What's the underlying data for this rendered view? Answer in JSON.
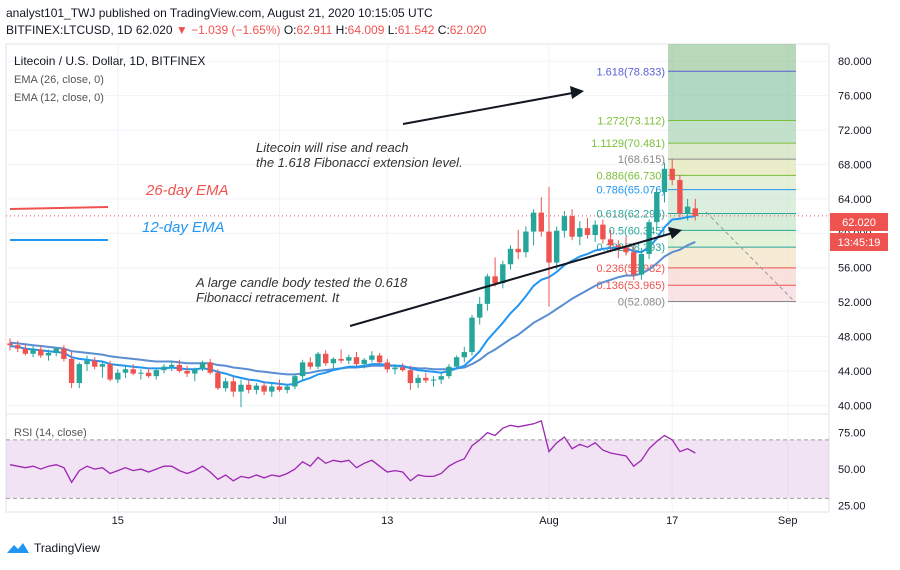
{
  "header": {
    "line1": "analyst101_TWJ published on TradingView.com, August 21, 2020 10:15:05 UTC",
    "symbol": "BITFINEX:LTCUSD, 1D",
    "last": "62.020",
    "change": "−1.039 (−1.65%)",
    "o_label": "O:",
    "o": "62.911",
    "h_label": "H:",
    "h": "64.009",
    "l_label": "L:",
    "l": "61.542",
    "c_label": "C:",
    "c": "62.020"
  },
  "legend": {
    "title": "Litecoin / U.S. Dollar, 1D, BITFINEX",
    "ema26": "EMA (26, close, 0)",
    "ema12": "EMA (12, close, 0)"
  },
  "annotations": {
    "ema26": "26-day EMA",
    "ema12": "12-day EMA",
    "note1_line1": "Litecoin will rise and reach",
    "note1_line2": "the 1.618 Fibonacci extension level.",
    "note2_line1": "A large candle body tested the 0.618",
    "note2_line2": "Fibonacci retracement. It"
  },
  "price_tag": {
    "value": "62.020",
    "countdown": "13:45:19"
  },
  "rsi_label": "RSI (14, close)",
  "footer": {
    "brand": "TradingView"
  },
  "colors": {
    "up": "#26a69a",
    "down": "#ef5350",
    "ema": "#2196f3",
    "rsi": "#9c27b0",
    "rsi_band": "#e1bee7"
  },
  "chart_data": {
    "type": "candlestick",
    "symbol": "LTCUSD",
    "timeframe": "1D",
    "price_ticks": [
      "80.000",
      "76.000",
      "72.000",
      "68.000",
      "64.000",
      "60.000",
      "56.000",
      "52.000",
      "48.000",
      "44.000",
      "40.000"
    ],
    "price_tick_values": [
      80,
      76,
      72,
      68,
      64,
      60,
      56,
      52,
      48,
      44,
      40
    ],
    "price_range": [
      39.0,
      82.0
    ],
    "date_ticks": [
      "15",
      "Jul",
      "13",
      "Aug",
      "17",
      "Sep"
    ],
    "date_tick_index": [
      14,
      35,
      49,
      70,
      86,
      101
    ],
    "rsi_ticks": [
      "75.00",
      "50.00",
      "25.00"
    ],
    "rsi_tick_values": [
      75,
      50,
      25
    ],
    "rsi_range": [
      22,
      85
    ],
    "rsi_band": [
      30,
      70
    ],
    "candles": [
      [
        47.2,
        47.8,
        46.4,
        47.0
      ],
      [
        47.0,
        47.5,
        46.2,
        46.6
      ],
      [
        46.6,
        47.1,
        45.8,
        46.0
      ],
      [
        46.0,
        46.9,
        45.6,
        46.5
      ],
      [
        46.5,
        47.0,
        45.5,
        45.8
      ],
      [
        45.8,
        46.5,
        45.2,
        46.1
      ],
      [
        46.1,
        46.8,
        45.7,
        46.6
      ],
      [
        46.6,
        47.0,
        45.1,
        45.4
      ],
      [
        45.4,
        46.2,
        42.0,
        42.6
      ],
      [
        42.6,
        45.0,
        42.0,
        44.8
      ],
      [
        44.8,
        45.8,
        44.0,
        45.2
      ],
      [
        45.2,
        45.6,
        44.2,
        44.5
      ],
      [
        44.5,
        45.0,
        43.2,
        44.8
      ],
      [
        44.8,
        45.2,
        42.8,
        43.0
      ],
      [
        43.0,
        44.2,
        42.6,
        43.8
      ],
      [
        43.8,
        44.6,
        43.2,
        44.2
      ],
      [
        44.2,
        44.8,
        43.5,
        43.7
      ],
      [
        43.7,
        44.2,
        43.0,
        43.8
      ],
      [
        43.8,
        44.4,
        43.2,
        43.4
      ],
      [
        43.4,
        44.3,
        43.0,
        44.1
      ],
      [
        44.1,
        44.8,
        43.7,
        44.5
      ],
      [
        44.5,
        45.2,
        44.0,
        44.7
      ],
      [
        44.7,
        45.3,
        43.8,
        44.0
      ],
      [
        44.0,
        44.6,
        43.3,
        43.7
      ],
      [
        43.7,
        44.4,
        42.8,
        44.2
      ],
      [
        44.2,
        45.2,
        44.0,
        45.0
      ],
      [
        45.0,
        45.4,
        43.6,
        43.8
      ],
      [
        43.8,
        44.2,
        41.8,
        42.0
      ],
      [
        42.0,
        43.2,
        41.6,
        42.8
      ],
      [
        42.8,
        43.3,
        41.0,
        41.6
      ],
      [
        41.6,
        43.0,
        39.8,
        42.4
      ],
      [
        42.4,
        43.0,
        41.4,
        41.8
      ],
      [
        41.8,
        42.6,
        41.3,
        42.3
      ],
      [
        42.3,
        42.8,
        41.2,
        41.6
      ],
      [
        41.6,
        42.6,
        41.0,
        42.2
      ],
      [
        42.2,
        43.0,
        41.6,
        41.8
      ],
      [
        41.8,
        42.4,
        41.4,
        42.2
      ],
      [
        42.2,
        43.6,
        41.9,
        43.4
      ],
      [
        43.4,
        45.3,
        43.0,
        45.0
      ],
      [
        45.0,
        45.6,
        44.2,
        44.5
      ],
      [
        44.5,
        46.2,
        44.2,
        46.0
      ],
      [
        46.0,
        46.4,
        44.6,
        44.9
      ],
      [
        44.9,
        45.6,
        44.3,
        45.4
      ],
      [
        45.4,
        46.5,
        44.9,
        45.2
      ],
      [
        45.2,
        45.9,
        44.8,
        45.6
      ],
      [
        45.6,
        46.2,
        44.6,
        44.8
      ],
      [
        44.8,
        45.5,
        44.3,
        45.3
      ],
      [
        45.3,
        46.3,
        45.0,
        45.8
      ],
      [
        45.8,
        46.1,
        44.8,
        45.0
      ],
      [
        45.0,
        45.4,
        43.8,
        44.2
      ],
      [
        44.2,
        44.8,
        43.6,
        44.4
      ],
      [
        44.4,
        44.9,
        43.9,
        44.1
      ],
      [
        44.1,
        44.6,
        41.8,
        42.6
      ],
      [
        42.6,
        43.6,
        42.0,
        43.2
      ],
      [
        43.2,
        43.8,
        42.6,
        42.9
      ],
      [
        42.9,
        43.4,
        42.2,
        43.0
      ],
      [
        43.0,
        43.8,
        42.5,
        43.4
      ],
      [
        43.4,
        44.8,
        43.1,
        44.5
      ],
      [
        44.5,
        45.8,
        44.2,
        45.6
      ],
      [
        45.6,
        46.8,
        45.0,
        46.2
      ],
      [
        46.2,
        50.5,
        45.8,
        50.2
      ],
      [
        50.2,
        52.6,
        49.4,
        51.8
      ],
      [
        51.8,
        55.3,
        51.0,
        55.0
      ],
      [
        55.0,
        57.2,
        53.8,
        54.2
      ],
      [
        54.2,
        56.8,
        53.6,
        56.4
      ],
      [
        56.4,
        58.6,
        55.8,
        58.2
      ],
      [
        58.2,
        60.4,
        57.0,
        57.8
      ],
      [
        57.8,
        60.8,
        57.2,
        60.2
      ],
      [
        60.2,
        62.8,
        58.6,
        62.4
      ],
      [
        62.4,
        64.2,
        59.6,
        60.2
      ],
      [
        60.2,
        65.4,
        51.5,
        56.6
      ],
      [
        56.6,
        60.8,
        55.8,
        60.3
      ],
      [
        60.3,
        62.6,
        59.5,
        62.0
      ],
      [
        62.0,
        62.8,
        59.2,
        59.6
      ],
      [
        59.6,
        61.4,
        58.6,
        60.6
      ],
      [
        60.6,
        61.8,
        59.4,
        59.8
      ],
      [
        59.8,
        61.5,
        59.0,
        61.0
      ],
      [
        61.0,
        61.6,
        58.8,
        59.3
      ],
      [
        59.3,
        60.4,
        57.8,
        58.6
      ],
      [
        58.6,
        59.2,
        57.1,
        58.4
      ],
      [
        58.4,
        59.6,
        57.4,
        57.8
      ],
      [
        57.8,
        58.9,
        54.6,
        55.2
      ],
      [
        55.2,
        58.3,
        54.6,
        57.6
      ],
      [
        57.6,
        61.6,
        57.0,
        61.3
      ],
      [
        61.3,
        65.2,
        60.6,
        64.8
      ],
      [
        64.8,
        68.2,
        63.6,
        67.5
      ],
      [
        67.5,
        68.6,
        65.6,
        66.2
      ],
      [
        66.2,
        66.8,
        61.8,
        62.3
      ],
      [
        62.3,
        64.0,
        61.5,
        63.1
      ],
      [
        62.9,
        64.0,
        61.5,
        62.0
      ]
    ],
    "ema12": [
      46.9,
      46.8,
      46.6,
      46.5,
      46.4,
      46.3,
      46.2,
      46.1,
      45.6,
      45.4,
      45.3,
      45.2,
      45.1,
      44.8,
      44.7,
      44.6,
      44.5,
      44.4,
      44.3,
      44.3,
      44.3,
      44.4,
      44.3,
      44.2,
      44.2,
      44.3,
      44.2,
      43.9,
      43.7,
      43.4,
      43.2,
      43.0,
      42.9,
      42.7,
      42.6,
      42.5,
      42.4,
      42.5,
      42.9,
      43.2,
      43.6,
      43.8,
      44.1,
      44.3,
      44.5,
      44.5,
      44.6,
      44.8,
      44.8,
      44.7,
      44.6,
      44.6,
      44.3,
      44.1,
      44.0,
      43.9,
      43.8,
      44.0,
      44.3,
      44.6,
      45.4,
      46.3,
      47.6,
      48.6,
      49.6,
      50.7,
      51.6,
      52.7,
      53.9,
      54.6,
      54.9,
      55.5,
      56.3,
      56.8,
      57.3,
      57.6,
      58.0,
      58.2,
      58.3,
      58.3,
      58.3,
      57.9,
      57.8,
      58.4,
      59.4,
      60.7,
      61.6,
      61.7,
      61.9,
      62.0
    ],
    "ema26": [
      47.3,
      47.2,
      47.1,
      47.0,
      46.9,
      46.8,
      46.7,
      46.6,
      46.3,
      46.2,
      46.1,
      46.0,
      45.9,
      45.7,
      45.6,
      45.5,
      45.4,
      45.3,
      45.2,
      45.1,
      45.1,
      45.1,
      45.0,
      44.9,
      44.9,
      44.9,
      44.9,
      44.7,
      44.6,
      44.4,
      44.3,
      44.2,
      44.0,
      43.9,
      43.8,
      43.7,
      43.6,
      43.6,
      43.7,
      43.8,
      44.0,
      44.1,
      44.2,
      44.3,
      44.4,
      44.4,
      44.5,
      44.6,
      44.6,
      44.6,
      44.6,
      44.5,
      44.4,
      44.3,
      44.3,
      44.2,
      44.2,
      44.2,
      44.3,
      44.4,
      44.8,
      45.3,
      46.0,
      46.5,
      47.1,
      47.7,
      48.2,
      48.9,
      49.6,
      50.1,
      50.6,
      51.2,
      51.8,
      52.4,
      52.9,
      53.4,
      53.9,
      54.3,
      54.6,
      54.9,
      55.1,
      55.1,
      55.3,
      55.8,
      56.5,
      57.3,
      57.8,
      58.1,
      58.6,
      59.0
    ],
    "rsi": [
      53,
      52,
      51,
      52,
      50,
      52,
      53,
      51,
      41,
      49,
      52,
      50,
      51,
      47,
      49,
      51,
      49,
      50,
      48,
      50,
      52,
      52,
      49,
      47,
      49,
      52,
      48,
      43,
      46,
      42,
      45,
      44,
      46,
      44,
      46,
      45,
      47,
      50,
      55,
      52,
      58,
      54,
      56,
      55,
      56,
      51,
      54,
      56,
      52,
      48,
      49,
      48,
      42,
      46,
      45,
      45,
      47,
      52,
      55,
      57,
      66,
      70,
      75,
      73,
      78,
      80,
      79,
      80,
      81,
      83,
      62,
      68,
      72,
      64,
      67,
      65,
      68,
      63,
      61,
      60,
      59,
      52,
      56,
      64,
      69,
      73,
      70,
      62,
      64,
      61
    ],
    "fibonacci": [
      {
        "label": "1.618(78.833)",
        "ratio": "1.618",
        "value": 78.833
      },
      {
        "label": "1.272(73.112)",
        "ratio": "1.272",
        "value": 73.112
      },
      {
        "label": "1.1129(70.481)",
        "ratio": "1.1129",
        "value": 70.481
      },
      {
        "label": "1(68.615)",
        "ratio": "1",
        "value": 68.615
      },
      {
        "label": "0.886(66.730)",
        "ratio": "0.886",
        "value": 66.73
      },
      {
        "label": "0.786(65.076)",
        "ratio": "0.786",
        "value": 65.076
      },
      {
        "label": "0.618(62.296)",
        "ratio": "0.618",
        "value": 62.296
      },
      {
        "label": "0.5(60.345)",
        "ratio": "0.5",
        "value": 60.345
      },
      {
        "label": "0.382(58.393)",
        "ratio": "0.382",
        "value": 58.393
      },
      {
        "label": "0.236(55.982)",
        "ratio": "0.236",
        "value": 55.982
      },
      {
        "label": "0.136(53.965)",
        "ratio": "0.136",
        "value": 53.965
      },
      {
        "label": "0(52.080)",
        "ratio": "0",
        "value": 52.08
      }
    ]
  }
}
